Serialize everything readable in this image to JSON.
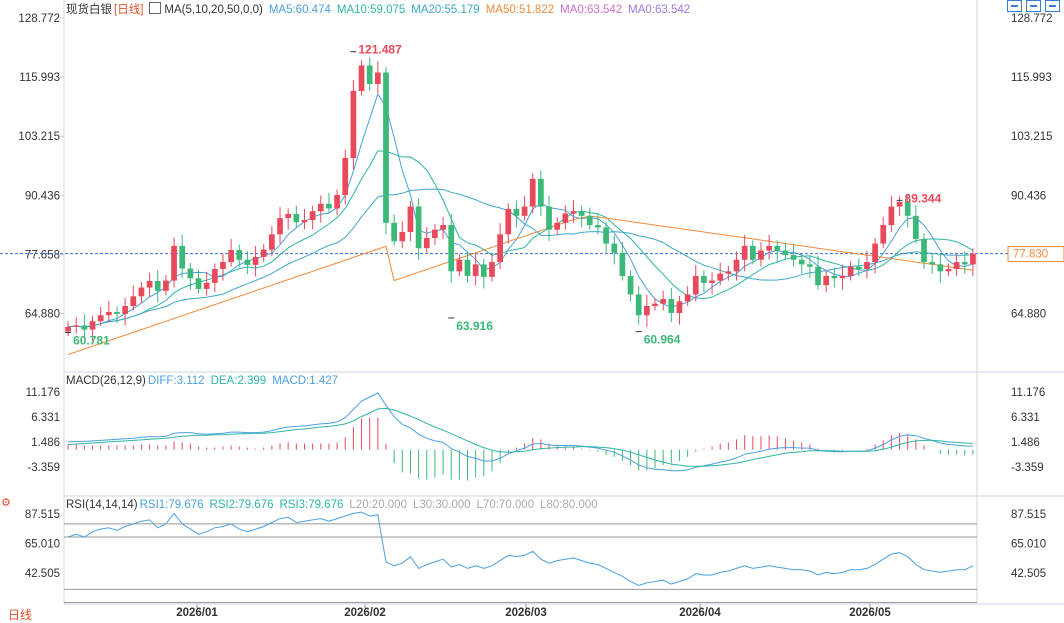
{
  "main_legend": {
    "name": "现货白银",
    "period": "[日线]",
    "ma_label": "MA(5,10,20,50,0,0)",
    "ma5": "MA5:60.474",
    "ma10": "MA10:59.075",
    "ma20": "MA20:55.179",
    "ma50": "MA50:51.822",
    "ma0a": "MA0:63.542",
    "ma0b": "MA0:63.542"
  },
  "macd_legend": {
    "label": "MACD(26,12,9)",
    "diff": "DIFF:3.112",
    "dea": "DEA:2.399",
    "macd": "MACD:1.427"
  },
  "rsi_legend": {
    "label": "RSI(14,14,14)",
    "rsi1": "RSI1:79.676",
    "rsi2": "RSI2:79.676",
    "rsi3": "RSI3:79.676",
    "l20": "L20:20.000",
    "l30": "L30:30.000",
    "l70": "L70:70.000",
    "l80": "L80:80.000"
  },
  "period_button": "日线",
  "toolbar_icons": [
    "expand-icon",
    "layout-icon",
    "settings-icon"
  ],
  "colors": {
    "up": "#e8495b",
    "down": "#3cb878",
    "ma5": "#4aa0e0",
    "ma10": "#2fb5a5",
    "ma20": "#3ea7c8",
    "ma50": "#f08a3a",
    "ma0": "#d070d0",
    "price_line": "#3a6fd8",
    "price_tag": "#f08a3a"
  },
  "chart_data": [
    {
      "type": "candlestick",
      "title": "现货白银 [日线]",
      "y_ticks": [
        "128.772",
        "115.993",
        "103.215",
        "90.436",
        "77.658",
        "64.880"
      ],
      "ylim": [
        55,
        130
      ],
      "x_tick_labels": [
        "2026/01",
        "2026/02",
        "2026/03",
        "2026/04",
        "2026/05"
      ],
      "current_price": "77.830",
      "current_price_value": 77.83,
      "annotations": [
        {
          "text": "121.487",
          "value": 121.487,
          "kind": "high"
        },
        {
          "text": "63.916",
          "value": 63.916,
          "kind": "low"
        },
        {
          "text": "60.964",
          "value": 60.964,
          "kind": "low"
        },
        {
          "text": "89.344",
          "value": 89.344,
          "kind": "high"
        },
        {
          "text": "60.781",
          "value": 60.781,
          "kind": "low"
        }
      ],
      "close": [
        62.0,
        62.3,
        61.4,
        63.2,
        64.5,
        65.2,
        64.8,
        66.5,
        68.6,
        70.5,
        71.9,
        69.8,
        72.0,
        79.5,
        74.6,
        72.5,
        70.2,
        71.5,
        74.5,
        76.0,
        78.6,
        76.5,
        75.4,
        77.1,
        78.7,
        82.0,
        85.5,
        86.4,
        84.6,
        85.1,
        87.0,
        88.6,
        87.6,
        90.5,
        98.5,
        113.0,
        118.5,
        114.5,
        117.0,
        84.5,
        80.5,
        82.5,
        88.0,
        79.0,
        81.2,
        83.0,
        84.0,
        74.0,
        76.5,
        73.0,
        75.5,
        72.8,
        76.0,
        82.0,
        87.5,
        86.0,
        88.0,
        94.0,
        88.0,
        83.0,
        84.5,
        86.5,
        87.0,
        86.0,
        84.0,
        83.5,
        80.0,
        78.0,
        73.0,
        69.0,
        64.5,
        66.5,
        67.0,
        68.0,
        65.0,
        67.5,
        69.0,
        73.0,
        71.5,
        72.0,
        73.5,
        74.0,
        76.5,
        79.5,
        76.5,
        78.5,
        79.5,
        78.5,
        77.5,
        76.5,
        75.5,
        75.0,
        71.0,
        73.0,
        72.5,
        73.0,
        75.0,
        74.5,
        76.0,
        80.0,
        84.0,
        88.0,
        89.0,
        86.0,
        81.0,
        76.0,
        75.5,
        74.0,
        74.5,
        76.0,
        75.5,
        77.8
      ]
    },
    {
      "type": "macd",
      "title": "MACD(26,12,9)",
      "y_ticks": [
        "11.176",
        "6.331",
        "1.486",
        "-3.359"
      ],
      "ylim": [
        -8,
        13
      ],
      "series": [
        {
          "name": "DIFF",
          "values": [
            1.5,
            1.6,
            1.6,
            1.7,
            1.8,
            1.9,
            2.0,
            2.1,
            2.2,
            2.4,
            2.5,
            2.5,
            2.6,
            3.2,
            3.3,
            3.3,
            3.1,
            3.0,
            3.1,
            3.2,
            3.4,
            3.4,
            3.3,
            3.3,
            3.4,
            3.7,
            4.1,
            4.4,
            4.5,
            4.6,
            4.8,
            5.0,
            5.1,
            5.4,
            6.2,
            7.8,
            9.4,
            10.2,
            11.0,
            8.6,
            6.4,
            4.9,
            4.2,
            3.0,
            2.2,
            1.7,
            1.4,
            0.2,
            -0.5,
            -1.3,
            -1.7,
            -2.2,
            -2.2,
            -1.7,
            -0.8,
            -0.2,
            0.3,
            1.1,
            1.2,
            0.9,
            0.8,
            0.8,
            0.8,
            0.7,
            0.5,
            0.3,
            -0.1,
            -0.5,
            -1.2,
            -2.0,
            -3.0,
            -3.5,
            -3.8,
            -3.9,
            -4.1,
            -4.1,
            -3.9,
            -3.4,
            -3.1,
            -2.8,
            -2.4,
            -2.1,
            -1.6,
            -0.9,
            -0.6,
            -0.3,
            0.1,
            0.3,
            0.4,
            0.4,
            0.3,
            0.3,
            -0.1,
            -0.3,
            -0.4,
            -0.4,
            -0.3,
            -0.3,
            -0.2,
            0.3,
            1.0,
            1.9,
            2.6,
            2.9,
            2.7,
            2.2,
            1.8,
            1.3,
            1.0,
            0.9,
            0.7,
            0.7
          ]
        },
        {
          "name": "DEA",
          "values": [
            1.0,
            1.1,
            1.2,
            1.3,
            1.4,
            1.5,
            1.6,
            1.7,
            1.8,
            1.9,
            2.0,
            2.1,
            2.2,
            2.4,
            2.6,
            2.7,
            2.8,
            2.8,
            2.9,
            2.9,
            3.0,
            3.1,
            3.1,
            3.2,
            3.2,
            3.3,
            3.5,
            3.7,
            3.9,
            4.0,
            4.2,
            4.4,
            4.5,
            4.7,
            5.0,
            5.6,
            6.4,
            7.1,
            7.9,
            8.0,
            7.7,
            7.1,
            6.5,
            5.8,
            5.1,
            4.4,
            3.8,
            3.1,
            2.4,
            1.7,
            1.0,
            0.4,
            -0.1,
            -0.4,
            -0.5,
            -0.4,
            -0.3,
            0.0,
            0.2,
            0.3,
            0.4,
            0.5,
            0.5,
            0.6,
            0.6,
            0.5,
            0.4,
            0.2,
            -0.1,
            -0.5,
            -1.0,
            -1.5,
            -2.0,
            -2.4,
            -2.8,
            -3.0,
            -3.2,
            -3.2,
            -3.2,
            -3.1,
            -3.0,
            -2.8,
            -2.6,
            -2.3,
            -1.9,
            -1.6,
            -1.3,
            -1.0,
            -0.7,
            -0.5,
            -0.4,
            -0.2,
            -0.2,
            -0.2,
            -0.2,
            -0.3,
            -0.3,
            -0.3,
            -0.3,
            -0.2,
            0.1,
            0.5,
            1.0,
            1.4,
            1.7,
            1.8,
            1.8,
            1.7,
            1.5,
            1.4,
            1.3,
            1.2
          ]
        },
        {
          "name": "MACD",
          "values": [
            1.0,
            1.0,
            0.8,
            0.8,
            0.8,
            0.8,
            0.8,
            0.8,
            0.8,
            1.0,
            1.0,
            0.8,
            0.8,
            1.6,
            1.4,
            1.2,
            0.6,
            0.4,
            0.4,
            0.6,
            0.8,
            0.6,
            0.4,
            0.2,
            0.4,
            0.8,
            1.2,
            1.4,
            1.2,
            1.2,
            1.2,
            1.2,
            1.2,
            1.4,
            2.4,
            4.4,
            6.0,
            6.2,
            6.2,
            1.2,
            -2.6,
            -4.4,
            -4.6,
            -5.6,
            -5.8,
            -5.4,
            -4.8,
            -5.8,
            -5.8,
            -6.0,
            -5.4,
            -5.2,
            -4.2,
            -2.6,
            -0.6,
            0.4,
            1.2,
            2.2,
            2.0,
            1.2,
            0.8,
            0.6,
            0.6,
            0.2,
            -0.2,
            -0.4,
            -1.0,
            -1.4,
            -2.2,
            -3.0,
            -4.0,
            -4.0,
            -3.6,
            -3.0,
            -2.6,
            -2.2,
            -1.4,
            -0.4,
            0.2,
            0.6,
            1.2,
            1.4,
            2.0,
            2.8,
            2.6,
            2.6,
            2.8,
            2.6,
            2.2,
            1.8,
            1.4,
            1.0,
            0.2,
            -0.2,
            -0.4,
            -0.2,
            0.0,
            0.0,
            0.2,
            1.0,
            1.8,
            2.8,
            3.2,
            3.0,
            2.0,
            0.8,
            0.0,
            -0.8,
            -1.0,
            -1.0,
            -1.2,
            -1.0
          ]
        }
      ]
    },
    {
      "type": "line",
      "title": "RSI(14,14,14)",
      "y_ticks": [
        "87.515",
        "65.010",
        "42.505"
      ],
      "ylim": [
        25,
        100
      ],
      "reference_lines": [
        80,
        70,
        30,
        20
      ],
      "series": [
        {
          "name": "RSI1",
          "values": [
            70,
            72,
            70,
            74,
            76,
            77,
            75,
            78,
            80,
            82,
            83,
            77,
            80,
            88,
            80,
            76,
            72,
            74,
            77,
            78,
            80,
            76,
            74,
            76,
            78,
            81,
            84,
            85,
            81,
            82,
            83,
            84,
            82,
            84,
            86,
            88,
            89,
            86,
            87,
            51,
            48,
            50,
            55,
            46,
            49,
            51,
            53,
            47,
            49,
            46,
            48,
            46,
            48,
            52,
            56,
            55,
            56,
            59,
            53,
            50,
            52,
            53,
            54,
            52,
            50,
            49,
            46,
            43,
            40,
            36,
            33,
            35,
            36,
            37,
            34,
            36,
            38,
            42,
            41,
            41,
            43,
            44,
            46,
            48,
            46,
            47,
            48,
            47,
            46,
            45,
            45,
            44,
            41,
            43,
            42,
            43,
            45,
            45,
            46,
            49,
            53,
            57,
            58,
            55,
            49,
            45,
            44,
            43,
            44,
            45,
            45,
            48
          ]
        }
      ]
    }
  ]
}
